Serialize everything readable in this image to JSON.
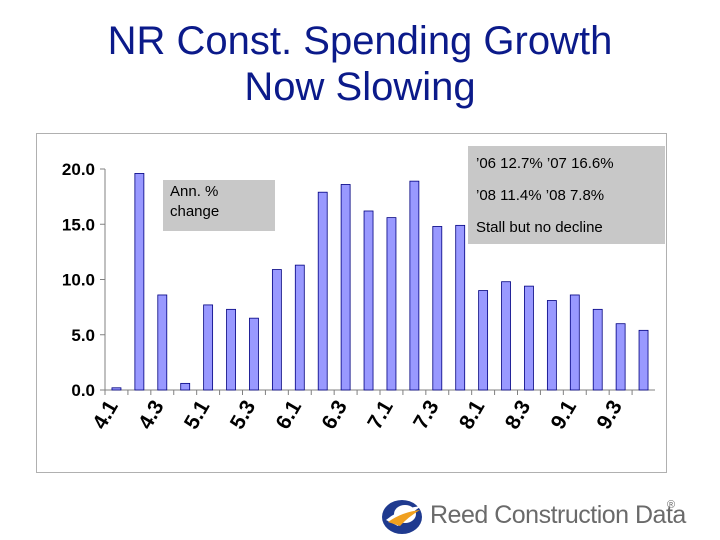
{
  "title_line1": "NR Const. Spending Growth",
  "title_line2": "Now Slowing",
  "note_left": "Ann. % change",
  "note_right": {
    "line1": "’06  12.7%  ’07  16.6%",
    "line2": "’08   11.4%  ’08  7.8%",
    "line3": "Stall but no decline"
  },
  "logo": {
    "text": "Reed Construction Data",
    "reg": "®"
  },
  "colors": {
    "bar_fill": "#9999ff",
    "bar_stroke": "#000080",
    "title": "#0b1a8a",
    "note_bg": "#c8c8c8"
  },
  "chart_data": {
    "type": "bar",
    "title": "NR Const. Spending Growth Now Slowing",
    "ylabel": "Ann. % change",
    "xlabel": "",
    "ylim": [
      0,
      20
    ],
    "yticks": [
      0,
      5,
      10,
      15,
      20
    ],
    "ytick_labels": [
      "0.0",
      "5.0",
      "10.0",
      "15.0",
      "20.0"
    ],
    "categories": [
      "4.1",
      "4.2",
      "4.3",
      "4.4",
      "5.1",
      "5.2",
      "5.3",
      "5.4",
      "6.1",
      "6.2",
      "6.3",
      "6.4",
      "7.1",
      "7.2",
      "7.3",
      "7.4",
      "8.1",
      "8.2",
      "8.3",
      "8.4",
      "9.1",
      "9.2",
      "9.3",
      "9.4"
    ],
    "xtick_labels": [
      "4.1",
      "4.3",
      "5.1",
      "5.3",
      "6.1",
      "6.3",
      "7.1",
      "7.3",
      "8.1",
      "8.3",
      "9.1",
      "9.3"
    ],
    "values": [
      0.2,
      19.6,
      8.6,
      0.6,
      7.7,
      7.3,
      6.5,
      10.9,
      11.3,
      17.9,
      18.6,
      16.2,
      15.6,
      18.9,
      14.8,
      14.9,
      9.0,
      9.8,
      9.4,
      8.1,
      8.6,
      7.3,
      6.0,
      5.4
    ]
  }
}
